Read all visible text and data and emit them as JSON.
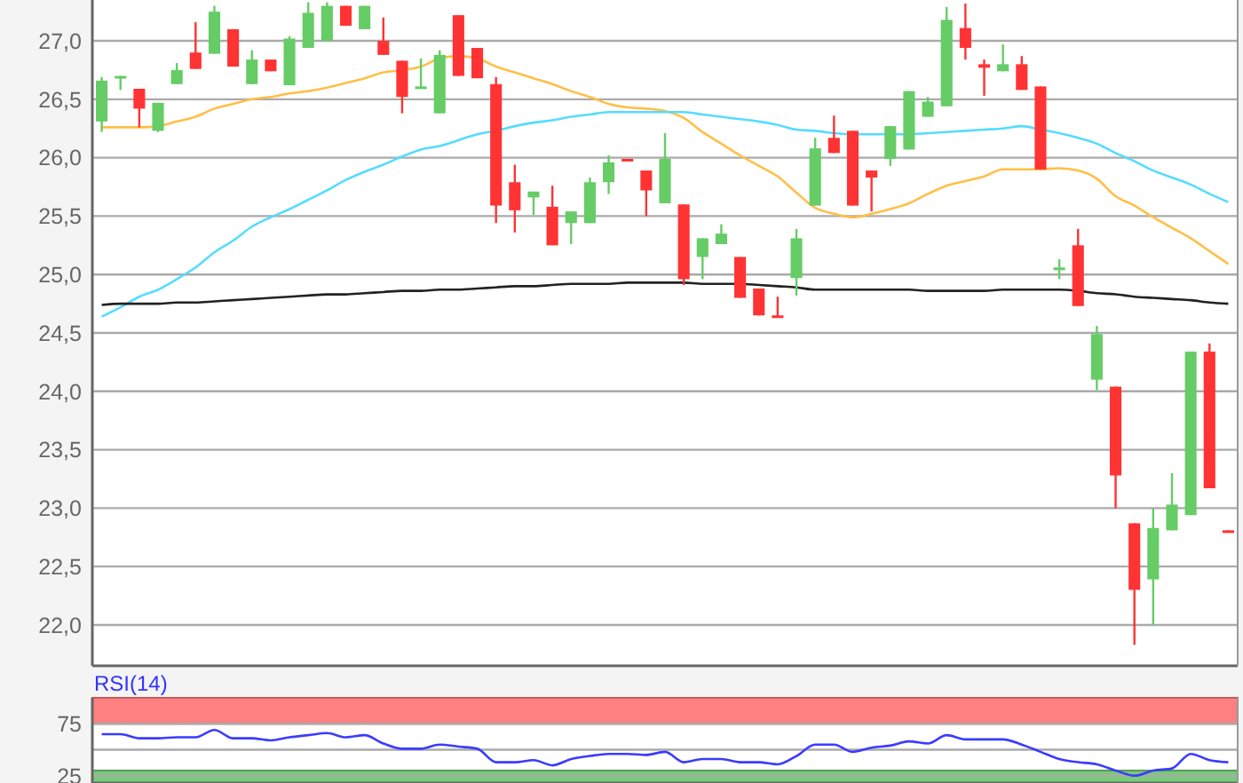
{
  "chart_data": [
    {
      "type": "candlestick",
      "categories": [
        null,
        null,
        null,
        null,
        null,
        null,
        null,
        null,
        null,
        null,
        null,
        null,
        null,
        null,
        null,
        null,
        null,
        null,
        null,
        null,
        null,
        null,
        null,
        null,
        null,
        null,
        null,
        null,
        null,
        null,
        null,
        null,
        null,
        null,
        null,
        null,
        null,
        null,
        null,
        null,
        null,
        null,
        null,
        null,
        null,
        null,
        null,
        null,
        null,
        null,
        null,
        null,
        null,
        null,
        null,
        null,
        null,
        null,
        null,
        null,
        null
      ],
      "ylim": [
        21.65,
        27.35
      ],
      "yticks": [
        {
          "value": 22,
          "label": "22,0"
        },
        {
          "value": 22.5,
          "label": "22,5"
        },
        {
          "value": 23,
          "label": "23,0"
        },
        {
          "value": 23.5,
          "label": "23,5"
        },
        {
          "value": 24,
          "label": "24,0"
        },
        {
          "value": 24.5,
          "label": "24,5"
        },
        {
          "value": 25,
          "label": "25,0"
        },
        {
          "value": 25.5,
          "label": "25,5"
        },
        {
          "value": 26,
          "label": "26,0"
        },
        {
          "value": 26.5,
          "label": "26,5"
        },
        {
          "value": 27,
          "label": "27,0"
        }
      ],
      "grid": "y",
      "tick_labels": "y",
      "series": [
        {
          "type": "line",
          "color": "#ffbf47",
          "values": [
            26.26,
            26.26,
            26.26,
            26.27,
            26.31,
            26.35,
            26.42,
            26.46,
            26.5,
            26.52,
            26.55,
            26.57,
            26.6,
            26.64,
            26.68,
            26.73,
            26.75,
            26.78,
            26.85,
            26.87,
            26.85,
            26.78,
            26.73,
            26.68,
            26.63,
            26.57,
            26.52,
            26.46,
            26.43,
            26.42,
            26.4,
            26.34,
            26.22,
            26.12,
            26.02,
            25.93,
            25.84,
            25.7,
            25.57,
            25.52,
            25.49,
            25.52,
            25.56,
            25.61,
            25.69,
            25.76,
            25.8,
            25.84,
            25.9,
            25.9,
            25.9,
            25.91,
            25.89,
            25.82,
            25.67,
            25.59,
            25.49,
            25.4,
            25.31,
            25.2,
            25.09
          ]
        },
        {
          "type": "line",
          "color": "#55dcff",
          "values": [
            24.64,
            24.72,
            24.81,
            24.87,
            24.96,
            25.06,
            25.19,
            25.29,
            25.41,
            25.49,
            25.56,
            25.64,
            25.72,
            25.81,
            25.88,
            25.94,
            26.01,
            26.07,
            26.1,
            26.15,
            26.2,
            26.23,
            26.27,
            26.3,
            26.32,
            26.35,
            26.37,
            26.39,
            26.39,
            26.39,
            26.39,
            26.39,
            26.37,
            26.35,
            26.33,
            26.31,
            26.28,
            26.24,
            26.23,
            26.21,
            26.2,
            26.2,
            26.2,
            26.2,
            26.21,
            26.22,
            26.23,
            26.24,
            26.25,
            26.27,
            26.24,
            26.21,
            26.17,
            26.12,
            26.04,
            25.97,
            25.89,
            25.83,
            25.77,
            25.69,
            25.62
          ]
        },
        {
          "type": "line",
          "color": "#222222",
          "values": [
            24.74,
            24.75,
            24.75,
            24.75,
            24.76,
            24.76,
            24.77,
            24.78,
            24.79,
            24.8,
            24.81,
            24.82,
            24.83,
            24.83,
            24.84,
            24.85,
            24.86,
            24.86,
            24.87,
            24.87,
            24.88,
            24.89,
            24.9,
            24.9,
            24.91,
            24.92,
            24.92,
            24.92,
            24.93,
            24.93,
            24.93,
            24.93,
            24.92,
            24.92,
            24.92,
            24.91,
            24.9,
            24.89,
            24.87,
            24.87,
            24.87,
            24.87,
            24.87,
            24.87,
            24.86,
            24.86,
            24.86,
            24.86,
            24.87,
            24.87,
            24.87,
            24.87,
            24.86,
            24.84,
            24.83,
            24.81,
            24.8,
            24.79,
            24.78,
            24.76,
            24.75
          ]
        },
        {
          "ohlc": [
            [
              26.31,
              26.69,
              26.22,
              26.66
            ],
            [
              26.68,
              26.7,
              26.58,
              26.7
            ],
            [
              26.59,
              26.59,
              26.26,
              26.42
            ],
            [
              26.23,
              26.47,
              26.22,
              26.47
            ],
            [
              26.63,
              26.81,
              26.63,
              26.75
            ],
            [
              26.9,
              27.16,
              26.76,
              26.76
            ],
            [
              26.89,
              27.3,
              26.89,
              27.25
            ],
            [
              27.1,
              27.1,
              26.78,
              26.78
            ],
            [
              26.63,
              26.92,
              26.63,
              26.84
            ],
            [
              26.84,
              26.84,
              26.74,
              26.74
            ],
            [
              26.62,
              27.04,
              26.62,
              27.02
            ],
            [
              26.94,
              27.33,
              26.94,
              27.24
            ],
            [
              27.0,
              27.33,
              27.0,
              27.3
            ],
            [
              27.3,
              27.3,
              27.13,
              27.13
            ],
            [
              27.1,
              27.3,
              27.1,
              27.3
            ],
            [
              27.0,
              27.2,
              26.88,
              26.88
            ],
            [
              26.83,
              26.83,
              26.38,
              26.52
            ],
            [
              26.6,
              26.85,
              26.6,
              26.61
            ],
            [
              26.38,
              26.92,
              26.38,
              26.88
            ],
            [
              27.22,
              27.22,
              26.7,
              26.7
            ],
            [
              26.94,
              26.94,
              26.68,
              26.68
            ],
            [
              26.63,
              26.69,
              25.44,
              25.59
            ],
            [
              25.79,
              25.94,
              25.36,
              25.55
            ],
            [
              25.66,
              25.71,
              25.51,
              25.71
            ],
            [
              25.58,
              25.76,
              25.25,
              25.25
            ],
            [
              25.44,
              25.54,
              25.26,
              25.54
            ],
            [
              25.44,
              25.83,
              25.44,
              25.79
            ],
            [
              25.79,
              26.02,
              25.69,
              25.96
            ],
            [
              25.99,
              25.99,
              25.97,
              25.97
            ],
            [
              25.89,
              25.89,
              25.5,
              25.72
            ],
            [
              25.61,
              26.21,
              25.61,
              25.99
            ],
            [
              25.6,
              25.6,
              24.91,
              24.96
            ],
            [
              25.15,
              25.31,
              24.96,
              25.31
            ],
            [
              25.26,
              25.43,
              25.26,
              25.35
            ],
            [
              25.15,
              25.15,
              24.8,
              24.8
            ],
            [
              24.88,
              24.88,
              24.65,
              24.65
            ],
            [
              24.65,
              24.81,
              24.63,
              24.63
            ],
            [
              24.97,
              25.39,
              24.82,
              25.31
            ],
            [
              25.59,
              26.17,
              25.59,
              26.08
            ],
            [
              26.17,
              26.36,
              26.04,
              26.04
            ],
            [
              26.23,
              26.23,
              25.59,
              25.59
            ],
            [
              25.89,
              25.89,
              25.54,
              25.83
            ],
            [
              25.99,
              26.27,
              25.93,
              26.27
            ],
            [
              26.07,
              26.57,
              26.07,
              26.57
            ],
            [
              26.35,
              26.52,
              26.35,
              26.48
            ],
            [
              26.44,
              27.29,
              26.44,
              27.18
            ],
            [
              27.11,
              27.32,
              26.84,
              26.94
            ],
            [
              26.8,
              26.84,
              26.53,
              26.77
            ],
            [
              26.74,
              26.97,
              26.74,
              26.8
            ],
            [
              26.8,
              26.87,
              26.58,
              26.58
            ],
            [
              26.61,
              26.61,
              25.9,
              25.9
            ],
            [
              25.05,
              25.13,
              24.96,
              25.06
            ],
            [
              25.25,
              25.39,
              24.73,
              24.73
            ],
            [
              24.1,
              24.56,
              24.01,
              24.49
            ],
            [
              24.04,
              24.04,
              23.0,
              23.28
            ],
            [
              22.87,
              22.87,
              21.83,
              22.3
            ],
            [
              22.39,
              23.0,
              22.0,
              22.83
            ],
            [
              22.81,
              23.3,
              22.81,
              23.03
            ],
            [
              22.94,
              24.34,
              22.94,
              24.34
            ],
            [
              24.34,
              24.41,
              23.17,
              23.17
            ],
            [
              22.81,
              22.81,
              22.79,
              22.79
            ]
          ],
          "colors": [
            "#66cc66",
            "#66cc66",
            "#ff3333",
            "#66cc66",
            "#66cc66",
            "#ff3333",
            "#66cc66",
            "#ff3333",
            "#66cc66",
            "#ff3333",
            "#66cc66",
            "#66cc66",
            "#66cc66",
            "#ff3333",
            "#66cc66",
            "#ff3333",
            "#ff3333",
            "#66cc66",
            "#66cc66",
            "#ff3333",
            "#ff3333",
            "#ff3333",
            "#ff3333",
            "#66cc66",
            "#ff3333",
            "#66cc66",
            "#66cc66",
            "#66cc66",
            "#ff3333",
            "#ff3333",
            "#66cc66",
            "#ff3333",
            "#66cc66",
            "#66cc66",
            "#ff3333",
            "#ff3333",
            "#ff3333",
            "#66cc66",
            "#66cc66",
            "#ff3333",
            "#ff3333",
            "#ff3333",
            "#66cc66",
            "#66cc66",
            "#66cc66",
            "#66cc66",
            "#ff3333",
            "#ff3333",
            "#66cc66",
            "#ff3333",
            "#ff3333",
            "#66cc66",
            "#ff3333",
            "#66cc66",
            "#ff3333",
            "#ff3333",
            "#66cc66",
            "#66cc66",
            "#66cc66",
            "#ff3333",
            "#ff3333"
          ]
        }
      ]
    },
    {
      "type": "line",
      "title": "RSI(14)",
      "categories": [
        null,
        null,
        null,
        null,
        null,
        null,
        null,
        null,
        null,
        null,
        null,
        null,
        null,
        null,
        null,
        null,
        null,
        null,
        null,
        null,
        null,
        null,
        null,
        null,
        null,
        null,
        null,
        null,
        null,
        null,
        null,
        null,
        null,
        null,
        null,
        null,
        null,
        null,
        null,
        null,
        null,
        null,
        null,
        null,
        null,
        null,
        null,
        null,
        null,
        null,
        null,
        null,
        null,
        null,
        null,
        null,
        null,
        null,
        null,
        null,
        null
      ],
      "ylim": [
        18,
        100
      ],
      "yticks": [
        25,
        {
          "value": 50,
          "label": null
        },
        75
      ],
      "grid": "y",
      "tick_labels": "y",
      "bands": [
        {
          "axis": "y",
          "from": 75,
          "to": 100,
          "color": "#ff8080"
        },
        {
          "axis": "y",
          "from": 18,
          "to": 30,
          "color": "#77cc77"
        }
      ],
      "series": [
        {
          "color": "#3b3bff",
          "values": [
            65,
            65,
            61,
            61,
            62,
            62,
            69,
            61,
            61,
            59,
            62,
            64,
            66,
            62,
            64,
            56,
            51,
            51,
            55,
            53,
            51,
            38,
            38,
            40,
            35,
            41,
            44,
            46,
            46,
            45,
            48,
            38,
            41,
            41,
            38,
            38,
            36,
            44,
            55,
            55,
            48,
            52,
            54,
            58,
            56,
            64,
            60,
            60,
            60,
            55,
            48,
            41,
            38,
            36,
            30,
            25,
            30,
            32,
            46,
            40,
            38
          ]
        }
      ]
    }
  ]
}
